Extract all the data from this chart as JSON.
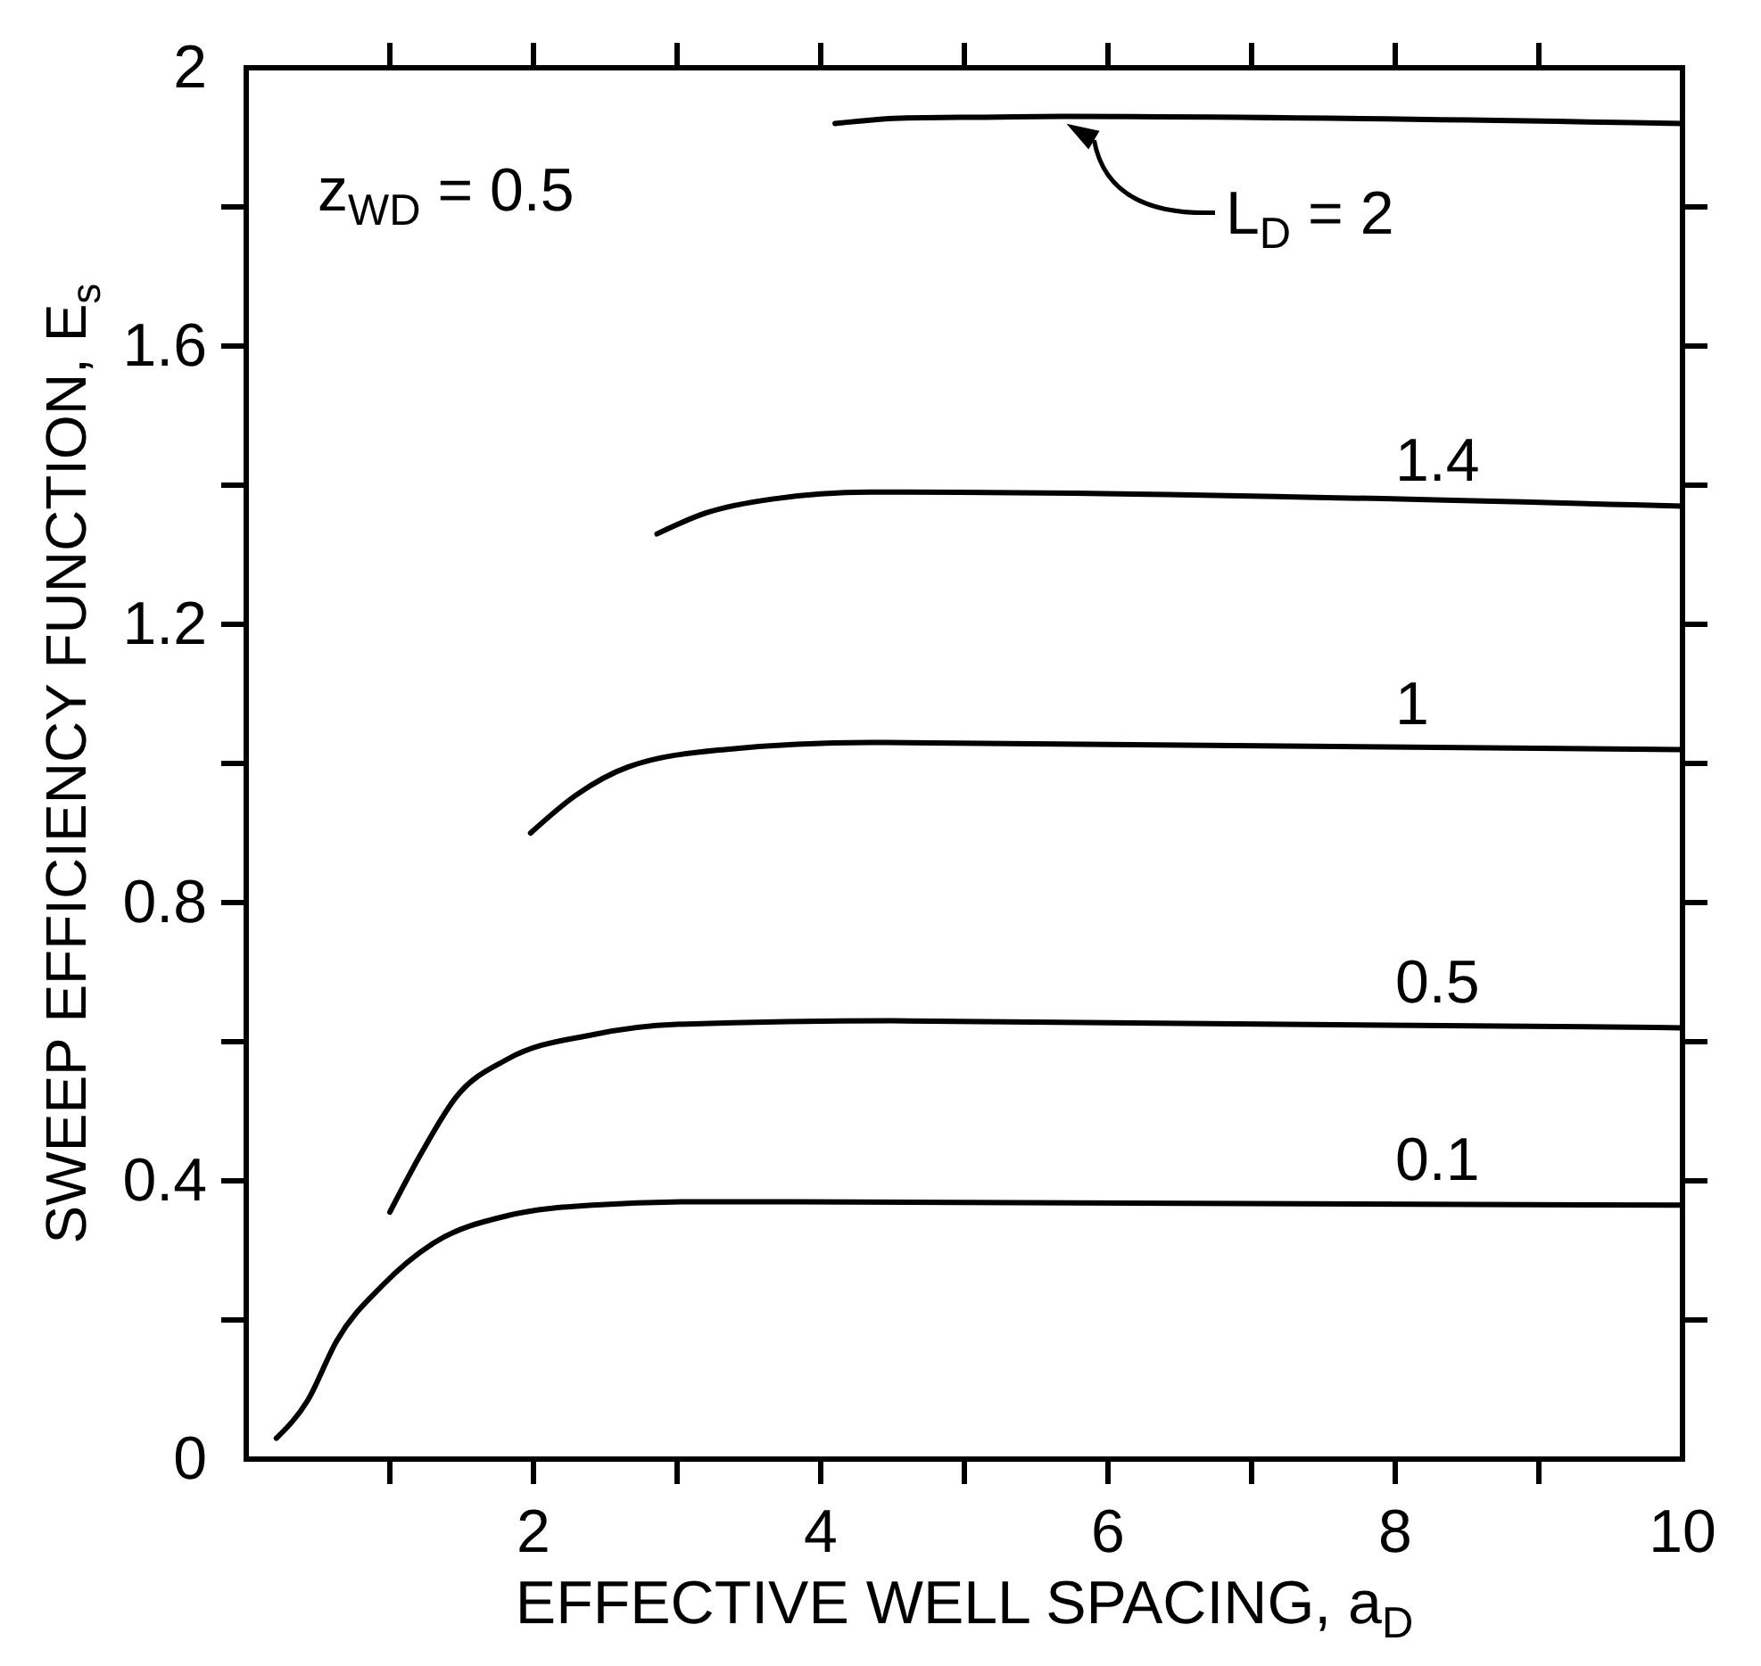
{
  "chart_data": {
    "type": "line",
    "xlabel": "EFFECTIVE WELL SPACING, a$_{D}$",
    "ylabel": "SWEEP EFFICIENCY FUNCTION, E$_{s}$",
    "xlim": [
      0,
      10
    ],
    "ylim": [
      0,
      2
    ],
    "xticks": [
      2,
      4,
      6,
      8,
      10
    ],
    "yticks": [
      0,
      0.4,
      0.8,
      1.2,
      1.6,
      2
    ],
    "grid": false,
    "marker": "none",
    "line_style": "solid",
    "series": [
      {
        "name": "0.1",
        "color": "#000000",
        "x": [
          0.21,
          0.43,
          0.63,
          0.95,
          1.3,
          1.82,
          2.41,
          3.2,
          10
        ],
        "values": [
          0.03,
          0.085,
          0.17,
          0.25,
          0.31,
          0.35,
          0.365,
          0.37,
          0.365
        ]
      },
      {
        "name": "0.5",
        "color": "#000000",
        "x": [
          1.0,
          1.22,
          1.46,
          1.82,
          2.41,
          3.0,
          4.5,
          10
        ],
        "values": [
          0.355,
          0.44,
          0.52,
          0.575,
          0.61,
          0.625,
          0.63,
          0.62
        ]
      },
      {
        "name": "1",
        "color": "#000000",
        "x": [
          1.98,
          2.3,
          2.66,
          3.33,
          4.34,
          10
        ],
        "values": [
          0.9,
          0.955,
          0.995,
          1.02,
          1.03,
          1.02
        ]
      },
      {
        "name": "1.4",
        "color": "#000000",
        "x": [
          2.86,
          3.2,
          3.66,
          4.34,
          10
        ],
        "values": [
          1.33,
          1.36,
          1.38,
          1.39,
          1.37
        ]
      },
      {
        "name": "L$_{D}$ = 2",
        "color": "#000000",
        "x": [
          4.1,
          4.6,
          5.14,
          5.69,
          10
        ],
        "values": [
          1.92,
          1.928,
          1.929,
          1.93,
          1.92
        ]
      }
    ],
    "annotations": [
      "z$_{WD}$ = 0.5"
    ]
  }
}
